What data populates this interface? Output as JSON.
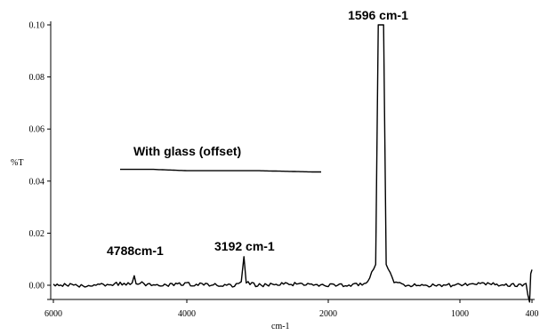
{
  "chart_data": {
    "type": "line",
    "title": "",
    "xlabel": "cm-1",
    "ylabel": "%T",
    "xlim": [
      6000,
      400
    ],
    "ylim": [
      -0.01,
      0.1
    ],
    "x_tick_positions": [
      6000,
      4000,
      2000,
      1000,
      400
    ],
    "x_tick_labels": [
      "6000",
      "4000",
      "2000",
      "1000",
      "400"
    ],
    "y_ticks": [
      0.0,
      0.02,
      0.04,
      0.06,
      0.08,
      0.1
    ],
    "y_tick_labels": [
      "0.00",
      "0.02",
      "0.04",
      "0.06",
      "0.08",
      "0.10"
    ],
    "grid": false,
    "legend": "none",
    "series": [
      {
        "points": [
          [
            6000,
            0.0
          ],
          [
            5500,
            0.0
          ],
          [
            5000,
            0.0005
          ],
          [
            4820,
            0.001
          ],
          [
            4788,
            0.004
          ],
          [
            4760,
            0.001
          ],
          [
            4500,
            0.0
          ],
          [
            4000,
            0.0005
          ],
          [
            3600,
            0.0
          ],
          [
            3300,
            0.0
          ],
          [
            3230,
            0.001
          ],
          [
            3192,
            0.011
          ],
          [
            3160,
            0.001
          ],
          [
            3000,
            0.0
          ],
          [
            2500,
            0.0005
          ],
          [
            2000,
            0.0
          ],
          [
            1800,
            0.0
          ],
          [
            1700,
            0.001
          ],
          [
            1640,
            0.008
          ],
          [
            1620,
            0.1
          ],
          [
            1596,
            0.1
          ],
          [
            1580,
            0.1
          ],
          [
            1560,
            0.008
          ],
          [
            1500,
            0.001
          ],
          [
            1400,
            0.0
          ],
          [
            1000,
            0.0
          ],
          [
            800,
            0.0005
          ],
          [
            600,
            0.0
          ],
          [
            450,
            0.0
          ],
          [
            420,
            -0.007
          ],
          [
            410,
            0.005
          ],
          [
            400,
            0.006
          ]
        ]
      },
      {
        "points": [
          [
            5000,
            0.0445
          ],
          [
            4500,
            0.0445
          ],
          [
            4000,
            0.044
          ],
          [
            3500,
            0.044
          ],
          [
            3000,
            0.044
          ],
          [
            2500,
            0.0437
          ],
          [
            2200,
            0.0435
          ],
          [
            2100,
            0.0435
          ]
        ]
      }
    ],
    "annotations": [
      {
        "text": "1596 cm-1",
        "x": 1596,
        "y": 0.1
      },
      {
        "text": "With glass (offset)",
        "x": 4000,
        "y": 0.044
      },
      {
        "text": "4788cm-1",
        "x": 4788,
        "y": 0.004
      },
      {
        "text": "3192 cm-1",
        "x": 3192,
        "y": 0.011
      }
    ]
  }
}
